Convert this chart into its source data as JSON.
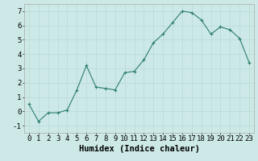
{
  "x_plot": [
    0,
    1,
    2,
    3,
    4,
    5,
    6,
    7,
    8,
    9,
    10,
    11,
    12,
    13,
    14,
    15,
    16,
    17,
    18,
    19,
    20,
    21,
    22,
    23
  ],
  "y_plot": [
    0.5,
    -0.7,
    -0.1,
    -0.1,
    0.1,
    1.5,
    3.2,
    1.7,
    1.6,
    1.5,
    2.7,
    2.8,
    3.6,
    4.8,
    5.4,
    6.2,
    7.0,
    6.9,
    6.4,
    5.4,
    5.9,
    5.7,
    5.1,
    3.4
  ],
  "xlabel": "Humidex (Indice chaleur)",
  "xlim": [
    -0.5,
    23.5
  ],
  "ylim": [
    -1.5,
    7.5
  ],
  "yticks": [
    -1,
    0,
    1,
    2,
    3,
    4,
    5,
    6,
    7
  ],
  "xticks": [
    0,
    1,
    2,
    3,
    4,
    5,
    6,
    7,
    8,
    9,
    10,
    11,
    12,
    13,
    14,
    15,
    16,
    17,
    18,
    19,
    20,
    21,
    22,
    23
  ],
  "line_color": "#2e7d6e",
  "bg_color": "#cce9e7",
  "grid_color": "#b8d8d6",
  "xlabel_fontsize": 7.5,
  "tick_fontsize": 6.5
}
